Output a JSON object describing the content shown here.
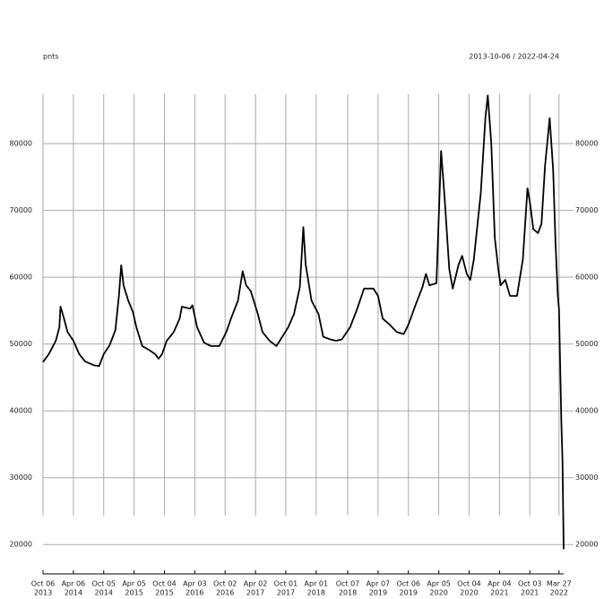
{
  "chart_data": {
    "type": "line",
    "title": "pnts",
    "subtitle": "2013-10-06 / 2022-04-24",
    "grid": true,
    "color": "#000000",
    "x": [
      "2013-10-06",
      "2013-11-10",
      "2013-12-22",
      "2014-01-12",
      "2014-01-19",
      "2014-02-09",
      "2014-03-02",
      "2014-04-06",
      "2014-05-11",
      "2014-06-15",
      "2014-08-10",
      "2014-09-07",
      "2014-10-05",
      "2014-11-09",
      "2014-12-14",
      "2015-01-04",
      "2015-01-18",
      "2015-02-01",
      "2015-03-01",
      "2015-03-29",
      "2015-04-19",
      "2015-05-24",
      "2015-07-05",
      "2015-08-09",
      "2015-08-30",
      "2015-09-20",
      "2015-10-18",
      "2015-11-29",
      "2016-01-03",
      "2016-01-17",
      "2016-03-06",
      "2016-03-20",
      "2016-04-17",
      "2016-05-29",
      "2016-07-10",
      "2016-08-28",
      "2016-10-09",
      "2016-11-06",
      "2016-12-18",
      "2017-01-15",
      "2017-02-05",
      "2017-03-05",
      "2017-04-16",
      "2017-05-14",
      "2017-06-25",
      "2017-08-06",
      "2017-09-10",
      "2017-10-15",
      "2017-11-19",
      "2017-12-24",
      "2018-01-14",
      "2018-01-28",
      "2018-03-04",
      "2018-04-15",
      "2018-05-13",
      "2018-06-24",
      "2018-07-29",
      "2018-09-02",
      "2018-10-21",
      "2018-12-02",
      "2019-01-13",
      "2019-03-10",
      "2019-04-07",
      "2019-05-05",
      "2019-06-16",
      "2019-07-28",
      "2019-09-08",
      "2019-10-06",
      "2019-11-17",
      "2019-12-29",
      "2020-01-19",
      "2020-02-09",
      "2020-03-22",
      "2020-04-19",
      "2020-05-10",
      "2020-06-07",
      "2020-06-28",
      "2020-08-02",
      "2020-08-23",
      "2020-09-20",
      "2020-10-11",
      "2020-11-01",
      "2020-12-13",
      "2021-01-10",
      "2021-01-24",
      "2021-02-14",
      "2021-03-07",
      "2021-03-28",
      "2021-04-11",
      "2021-05-09",
      "2021-06-06",
      "2021-07-18",
      "2021-08-22",
      "2021-09-12",
      "2021-09-19",
      "2021-10-03",
      "2021-10-24",
      "2021-11-21",
      "2021-12-12",
      "2022-01-02",
      "2022-01-30",
      "2022-02-20",
      "2022-03-06",
      "2022-03-20",
      "2022-03-27",
      "2022-04-10",
      "2022-04-17",
      "2022-04-24"
    ],
    "values": [
      47300,
      48500,
      50500,
      52500,
      55600,
      53800,
      51800,
      50500,
      48500,
      47400,
      46800,
      46700,
      48500,
      49800,
      52100,
      57200,
      61800,
      58800,
      56500,
      54800,
      52500,
      49700,
      49100,
      48500,
      47800,
      48500,
      50500,
      51800,
      53800,
      55600,
      55300,
      55800,
      52500,
      50200,
      49700,
      49700,
      51800,
      53800,
      56500,
      60900,
      58800,
      57900,
      54500,
      51800,
      50500,
      49700,
      51100,
      52500,
      54500,
      58500,
      67500,
      61900,
      56500,
      54500,
      51100,
      50700,
      50500,
      50700,
      52500,
      55200,
      58300,
      58300,
      57200,
      53800,
      52900,
      51800,
      51500,
      52900,
      55800,
      58500,
      60500,
      58800,
      59100,
      78900,
      71900,
      61200,
      58300,
      61900,
      63200,
      60500,
      59600,
      62600,
      72600,
      84000,
      87200,
      80000,
      65900,
      61200,
      58800,
      59600,
      57200,
      57200,
      62600,
      70600,
      73300,
      71300,
      67200,
      66600,
      68000,
      76600,
      83800,
      76000,
      65200,
      57200,
      55200,
      38400,
      32400,
      19300
    ],
    "xlim": [
      "2013-10-06",
      "2022-04-24"
    ],
    "ylim": [
      15600,
      87400
    ],
    "yticks": [
      20000,
      30000,
      40000,
      50000,
      60000,
      70000,
      80000
    ],
    "xticks": [
      {
        "value": "2013-10-06",
        "label": [
          "Oct 06",
          "2013"
        ]
      },
      {
        "value": "2014-04-06",
        "label": [
          "Apr 06",
          "2014"
        ]
      },
      {
        "value": "2014-10-05",
        "label": [
          "Oct 05",
          "2014"
        ]
      },
      {
        "value": "2015-04-05",
        "label": [
          "Apr 05",
          "2015"
        ]
      },
      {
        "value": "2015-10-04",
        "label": [
          "Oct 04",
          "2015"
        ]
      },
      {
        "value": "2016-04-03",
        "label": [
          "Apr 03",
          "2016"
        ]
      },
      {
        "value": "2016-10-02",
        "label": [
          "Oct 02",
          "2016"
        ]
      },
      {
        "value": "2017-04-02",
        "label": [
          "Apr 02",
          "2017"
        ]
      },
      {
        "value": "2017-10-01",
        "label": [
          "Oct 01",
          "2017"
        ]
      },
      {
        "value": "2018-04-01",
        "label": [
          "Apr 01",
          "2018"
        ]
      },
      {
        "value": "2018-10-07",
        "label": [
          "Oct 07",
          "2018"
        ]
      },
      {
        "value": "2019-04-07",
        "label": [
          "Apr 07",
          "2019"
        ]
      },
      {
        "value": "2019-10-06",
        "label": [
          "Oct 06",
          "2019"
        ]
      },
      {
        "value": "2020-04-05",
        "label": [
          "Apr 05",
          "2020"
        ]
      },
      {
        "value": "2020-10-04",
        "label": [
          "Oct 04",
          "2020"
        ]
      },
      {
        "value": "2021-04-04",
        "label": [
          "Apr 04",
          "2021"
        ]
      },
      {
        "value": "2021-10-03",
        "label": [
          "Oct 03",
          "2021"
        ]
      },
      {
        "value": "2022-03-27",
        "label": [
          "Mar 27",
          "2022"
        ]
      }
    ]
  }
}
